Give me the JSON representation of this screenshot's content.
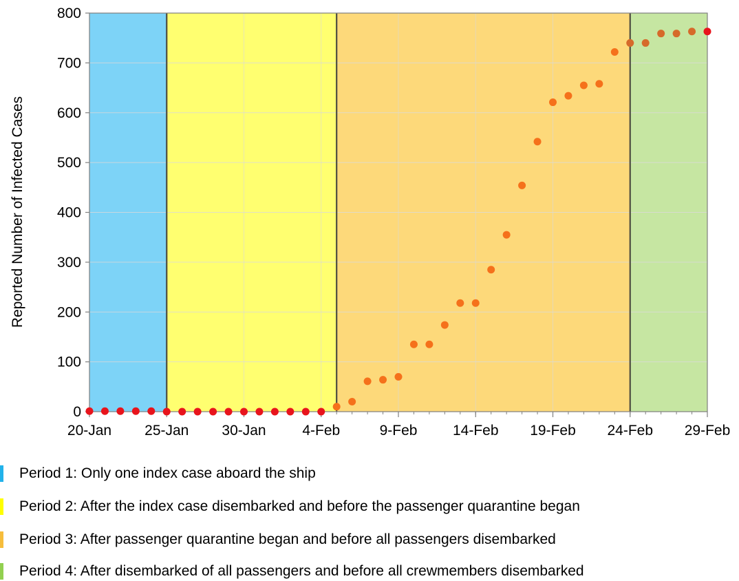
{
  "chart_data": {
    "type": "scatter",
    "title": "",
    "xlabel": "",
    "ylabel": "Reported Number of Infected Cases",
    "ylim": [
      0,
      800
    ],
    "yticks": [
      0,
      100,
      200,
      300,
      400,
      500,
      600,
      700,
      800
    ],
    "xlim": [
      "2020-01-20",
      "2020-02-29"
    ],
    "xtick_labels": [
      "20-Jan",
      "25-Jan",
      "30-Jan",
      "4-Feb",
      "9-Feb",
      "14-Feb",
      "19-Feb",
      "24-Feb",
      "29-Feb"
    ],
    "xtick_dates": [
      "2020-01-20",
      "2020-01-25",
      "2020-01-30",
      "2020-02-04",
      "2020-02-09",
      "2020-02-14",
      "2020-02-19",
      "2020-02-24",
      "2020-02-29"
    ],
    "grid": true,
    "periods": [
      {
        "label": "Period 1: Only one index case aboard the ship",
        "start": "2020-01-20",
        "end": "2020-01-25",
        "color": "#7dd3f7"
      },
      {
        "label": "Period 2: After the index case disembarked and before the passenger quarantine began",
        "start": "2020-01-25",
        "end": "2020-02-05",
        "color": "#ffff70"
      },
      {
        "label": "Period 3: After passenger quarantine began and before all passengers disembarked",
        "start": "2020-02-05",
        "end": "2020-02-24",
        "color": "#fdd97a"
      },
      {
        "label": "Period 4: After disembarked of all passengers and before all crewmembers disembarked",
        "start": "2020-02-24",
        "end": "2020-02-29",
        "color": "#c6e6a2"
      }
    ],
    "swatch_colors": [
      "#22b2ea",
      "#ffff00",
      "#f6bd3c",
      "#92d050"
    ],
    "series": [
      {
        "marker_color": "#f5711b",
        "points": [
          {
            "x": "2020-01-20",
            "y": 1,
            "color": "#e8141c"
          },
          {
            "x": "2020-01-21",
            "y": 1,
            "color": "#e8141c"
          },
          {
            "x": "2020-01-22",
            "y": 1,
            "color": "#e8141c"
          },
          {
            "x": "2020-01-23",
            "y": 1,
            "color": "#e8141c"
          },
          {
            "x": "2020-01-24",
            "y": 1,
            "color": "#e8141c"
          },
          {
            "x": "2020-01-25",
            "y": 0,
            "color": "#e8141c"
          },
          {
            "x": "2020-01-26",
            "y": 0,
            "color": "#e8141c"
          },
          {
            "x": "2020-01-27",
            "y": 0,
            "color": "#e8141c"
          },
          {
            "x": "2020-01-28",
            "y": 0,
            "color": "#e8141c"
          },
          {
            "x": "2020-01-29",
            "y": 0,
            "color": "#e8141c"
          },
          {
            "x": "2020-01-30",
            "y": 0,
            "color": "#e8141c"
          },
          {
            "x": "2020-01-31",
            "y": 0,
            "color": "#e8141c"
          },
          {
            "x": "2020-02-01",
            "y": 0,
            "color": "#e8141c"
          },
          {
            "x": "2020-02-02",
            "y": 0,
            "color": "#e8141c"
          },
          {
            "x": "2020-02-03",
            "y": 0,
            "color": "#e8141c"
          },
          {
            "x": "2020-02-04",
            "y": 0,
            "color": "#e8141c"
          },
          {
            "x": "2020-02-05",
            "y": 10,
            "color": "#f5711b"
          },
          {
            "x": "2020-02-06",
            "y": 20,
            "color": "#f5711b"
          },
          {
            "x": "2020-02-07",
            "y": 61,
            "color": "#f5711b"
          },
          {
            "x": "2020-02-08",
            "y": 64,
            "color": "#f5711b"
          },
          {
            "x": "2020-02-09",
            "y": 70,
            "color": "#f5711b"
          },
          {
            "x": "2020-02-10",
            "y": 135,
            "color": "#f5711b"
          },
          {
            "x": "2020-02-11",
            "y": 135,
            "color": "#f5711b"
          },
          {
            "x": "2020-02-12",
            "y": 174,
            "color": "#f5711b"
          },
          {
            "x": "2020-02-13",
            "y": 218,
            "color": "#f5711b"
          },
          {
            "x": "2020-02-14",
            "y": 218,
            "color": "#f5711b"
          },
          {
            "x": "2020-02-15",
            "y": 285,
            "color": "#f5711b"
          },
          {
            "x": "2020-02-16",
            "y": 355,
            "color": "#f5711b"
          },
          {
            "x": "2020-02-17",
            "y": 454,
            "color": "#f5711b"
          },
          {
            "x": "2020-02-18",
            "y": 542,
            "color": "#f5711b"
          },
          {
            "x": "2020-02-19",
            "y": 621,
            "color": "#f5711b"
          },
          {
            "x": "2020-02-20",
            "y": 634,
            "color": "#f5711b"
          },
          {
            "x": "2020-02-21",
            "y": 655,
            "color": "#f5711b"
          },
          {
            "x": "2020-02-22",
            "y": 658,
            "color": "#f5711b"
          },
          {
            "x": "2020-02-23",
            "y": 722,
            "color": "#f5711b"
          },
          {
            "x": "2020-02-24",
            "y": 740,
            "color": "#d66a2a"
          },
          {
            "x": "2020-02-25",
            "y": 740,
            "color": "#d66a2a"
          },
          {
            "x": "2020-02-26",
            "y": 759,
            "color": "#d66a2a"
          },
          {
            "x": "2020-02-27",
            "y": 759,
            "color": "#d66a2a"
          },
          {
            "x": "2020-02-28",
            "y": 763,
            "color": "#d66a2a"
          },
          {
            "x": "2020-02-29",
            "y": 763,
            "color": "#e8141c"
          }
        ]
      }
    ]
  }
}
